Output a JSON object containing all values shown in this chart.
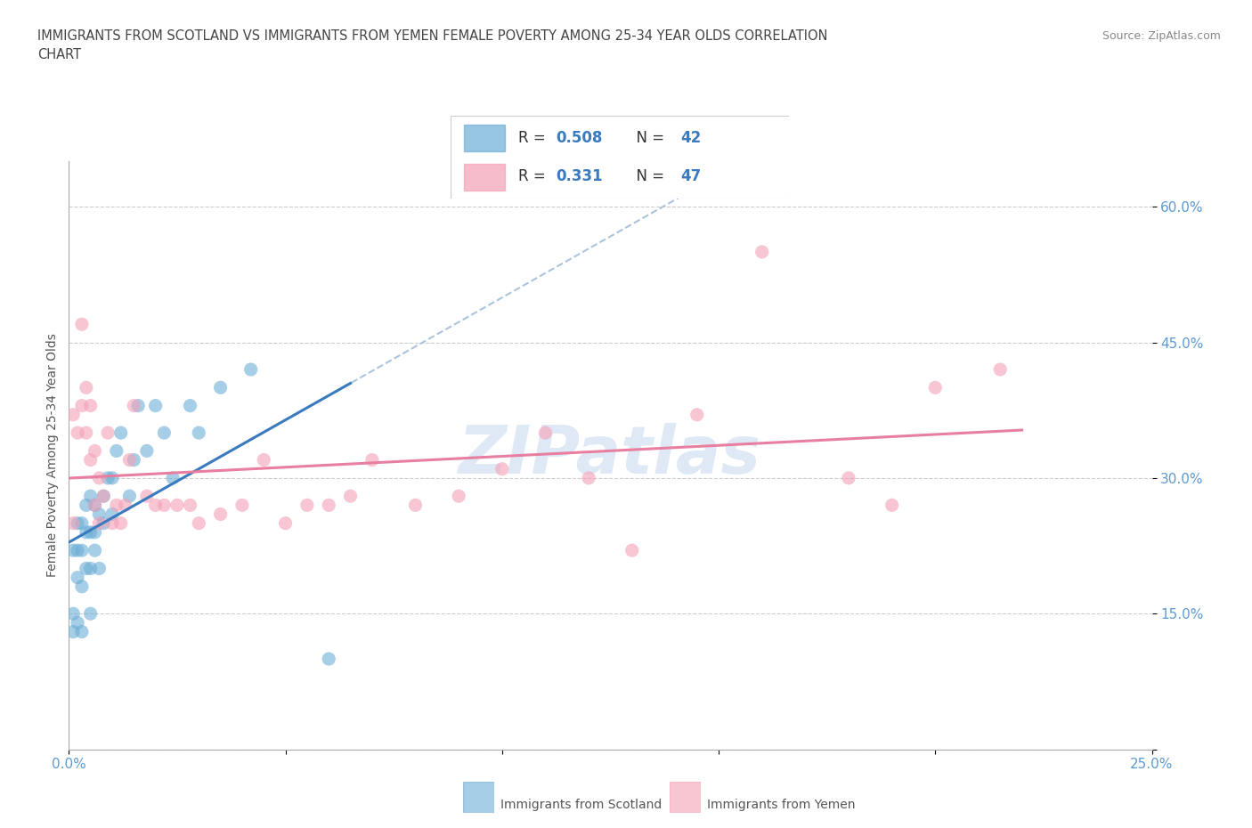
{
  "title_line1": "IMMIGRANTS FROM SCOTLAND VS IMMIGRANTS FROM YEMEN FEMALE POVERTY AMONG 25-34 YEAR OLDS CORRELATION",
  "title_line2": "CHART",
  "source_text": "Source: ZipAtlas.com",
  "ylabel": "Female Poverty Among 25-34 Year Olds",
  "x_min": 0.0,
  "x_max": 0.25,
  "y_min": 0.0,
  "y_max": 0.65,
  "x_ticks": [
    0.0,
    0.05,
    0.1,
    0.15,
    0.2,
    0.25
  ],
  "x_tick_labels_show": [
    "0.0%",
    "",
    "",
    "",
    "",
    "25.0%"
  ],
  "y_ticks": [
    0.0,
    0.15,
    0.3,
    0.45,
    0.6
  ],
  "y_tick_labels_show": [
    "",
    "15.0%",
    "30.0%",
    "45.0%",
    "60.0%"
  ],
  "scotland_color": "#6baed6",
  "yemen_color": "#f4a0b5",
  "scotland_R": 0.508,
  "scotland_N": 42,
  "yemen_R": 0.331,
  "yemen_N": 47,
  "legend_R_N_color": "#3a7abf",
  "legend_scotland": "Immigrants from Scotland",
  "legend_yemen": "Immigrants from Yemen",
  "scotland_x": [
    0.001,
    0.001,
    0.001,
    0.002,
    0.002,
    0.002,
    0.002,
    0.003,
    0.003,
    0.003,
    0.003,
    0.004,
    0.004,
    0.004,
    0.005,
    0.005,
    0.005,
    0.005,
    0.006,
    0.006,
    0.006,
    0.007,
    0.007,
    0.008,
    0.008,
    0.009,
    0.01,
    0.01,
    0.011,
    0.012,
    0.014,
    0.015,
    0.016,
    0.018,
    0.02,
    0.022,
    0.024,
    0.028,
    0.03,
    0.035,
    0.042,
    0.06
  ],
  "scotland_y": [
    0.13,
    0.15,
    0.22,
    0.14,
    0.19,
    0.22,
    0.25,
    0.13,
    0.18,
    0.22,
    0.25,
    0.2,
    0.24,
    0.27,
    0.15,
    0.2,
    0.24,
    0.28,
    0.22,
    0.24,
    0.27,
    0.2,
    0.26,
    0.25,
    0.28,
    0.3,
    0.26,
    0.3,
    0.33,
    0.35,
    0.28,
    0.32,
    0.38,
    0.33,
    0.38,
    0.35,
    0.3,
    0.38,
    0.35,
    0.4,
    0.42,
    0.1
  ],
  "yemen_x": [
    0.001,
    0.001,
    0.002,
    0.003,
    0.003,
    0.004,
    0.004,
    0.005,
    0.005,
    0.006,
    0.006,
    0.007,
    0.007,
    0.008,
    0.009,
    0.01,
    0.011,
    0.012,
    0.013,
    0.014,
    0.015,
    0.018,
    0.02,
    0.022,
    0.025,
    0.028,
    0.03,
    0.035,
    0.04,
    0.045,
    0.05,
    0.055,
    0.06,
    0.065,
    0.07,
    0.08,
    0.09,
    0.1,
    0.11,
    0.12,
    0.13,
    0.145,
    0.16,
    0.18,
    0.19,
    0.2,
    0.215
  ],
  "yemen_y": [
    0.25,
    0.37,
    0.35,
    0.38,
    0.47,
    0.35,
    0.4,
    0.32,
    0.38,
    0.27,
    0.33,
    0.25,
    0.3,
    0.28,
    0.35,
    0.25,
    0.27,
    0.25,
    0.27,
    0.32,
    0.38,
    0.28,
    0.27,
    0.27,
    0.27,
    0.27,
    0.25,
    0.26,
    0.27,
    0.32,
    0.25,
    0.27,
    0.27,
    0.28,
    0.32,
    0.27,
    0.28,
    0.31,
    0.35,
    0.3,
    0.22,
    0.37,
    0.55,
    0.3,
    0.27,
    0.4,
    0.42
  ]
}
